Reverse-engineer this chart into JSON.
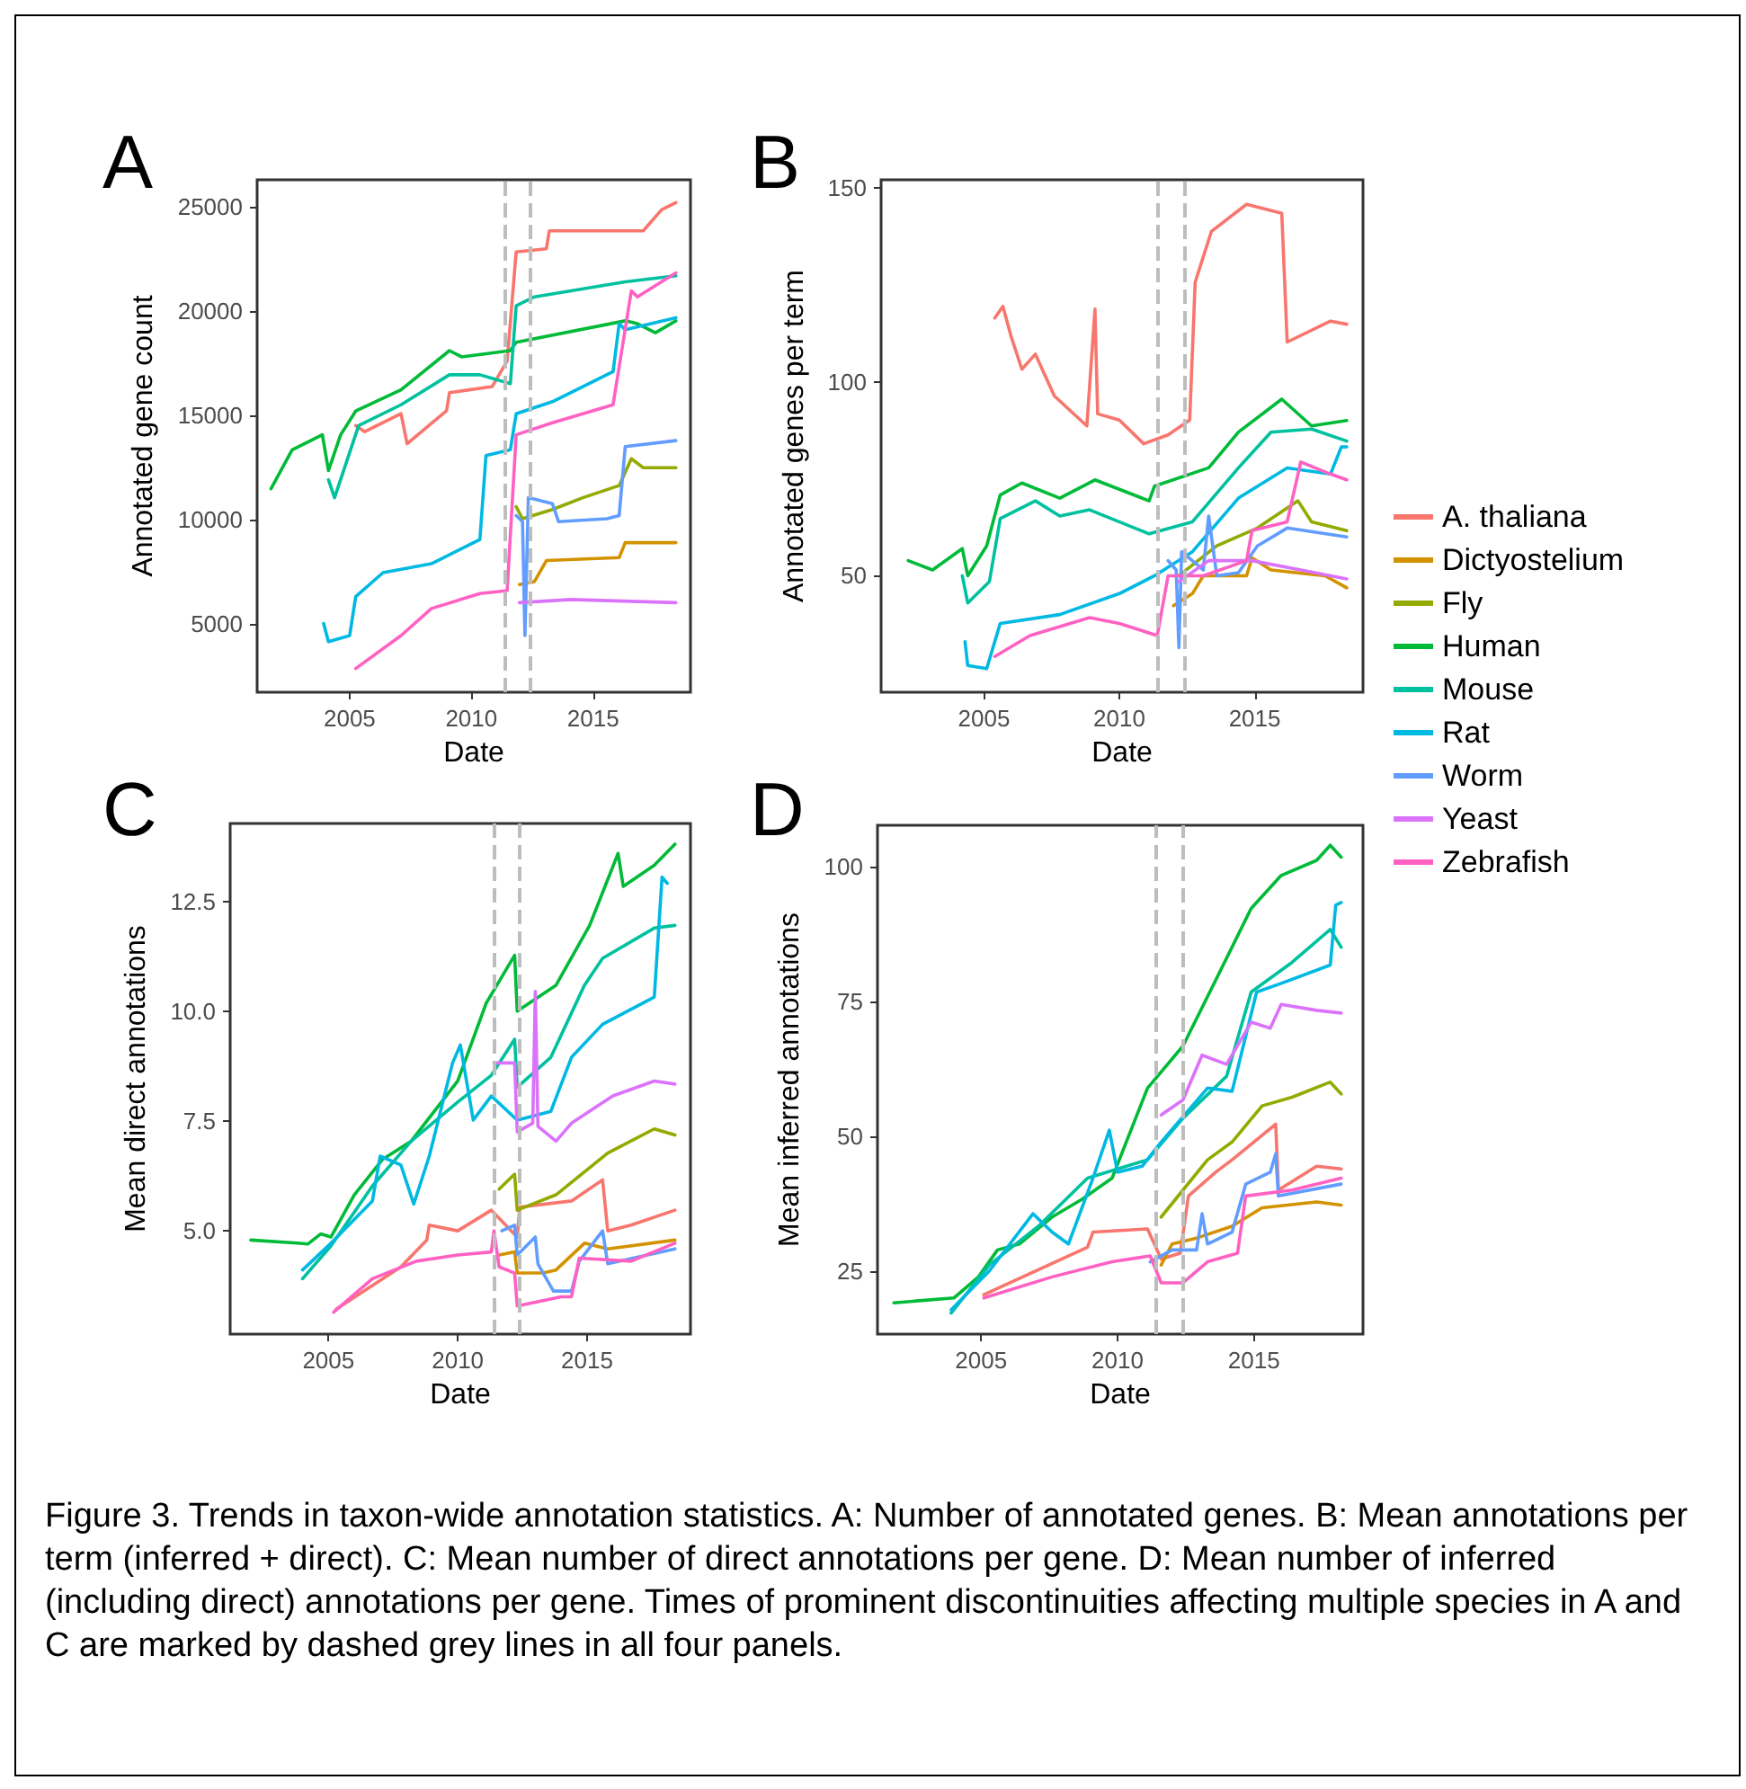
{
  "chart_data": [
    {
      "type": "line",
      "title": "A",
      "xlabel": "Date",
      "ylabel": "Annotated gene count",
      "xlim": [
        2001.2,
        2019
      ],
      "xticks": [
        2005,
        2010,
        2015
      ],
      "ylim": [
        1700,
        26300
      ],
      "yticks": [
        5000,
        10000,
        15000,
        20000,
        25000
      ],
      "grid": false,
      "ref_lines": [
        {
          "axis": "x",
          "value": 2011.4,
          "color": "#bdbdbd",
          "line_style": "dashed"
        },
        {
          "axis": "x",
          "value": 2012.4,
          "color": "#bdbdbd",
          "line_style": "dashed"
        }
      ],
      "series": [
        {
          "color": "#f8766d",
          "x": [
            2005.25,
            2005.62,
            2007.11,
            2007.36,
            2008.98,
            2009.1,
            2010.85,
            2011.47,
            2011.84,
            2013.08,
            2013.2,
            2017.06,
            2017.81,
            2018.4
          ],
          "values": [
            14500,
            14210,
            15070,
            13630,
            15210,
            16080,
            16370,
            17600,
            22840,
            22990,
            23850,
            23850,
            24860,
            25200
          ]
        },
        {
          "color": "#d39200",
          "x": [
            2011.97,
            2012.59,
            2013.08,
            2016.07,
            2016.32,
            2018.4
          ],
          "values": [
            6870,
            7010,
            8020,
            8160,
            8880,
            8880
          ]
        },
        {
          "color": "#93aa00",
          "x": [
            2011.84,
            2012.1,
            2013.33,
            2014.58,
            2016.07,
            2016.57,
            2017.06,
            2018.4
          ],
          "values": [
            10610,
            10030,
            10470,
            11040,
            11620,
            12910,
            12480,
            12480
          ]
        },
        {
          "color": "#00ba38",
          "x": [
            2001.77,
            2002.64,
            2003.88,
            2004.13,
            2004.63,
            2005.25,
            2007.11,
            2009.1,
            2009.6,
            2011.6,
            2011.84,
            2016.32,
            2016.82,
            2017.56,
            2018.4
          ],
          "values": [
            11470,
            13340,
            14060,
            12340,
            14060,
            15200,
            16220,
            18100,
            17800,
            18100,
            18500,
            19530,
            19390,
            18960,
            19530
          ]
        },
        {
          "color": "#00c19f",
          "x": [
            2004.13,
            2004.38,
            2005.37,
            2007.11,
            2009.1,
            2010.35,
            2011.6,
            2011.84,
            2012.59,
            2016.32,
            2018.4
          ],
          "values": [
            11900,
            11040,
            14500,
            15500,
            16940,
            16940,
            16510,
            20250,
            20680,
            21400,
            21690
          ]
        },
        {
          "color": "#00b9e3",
          "x": [
            2003.93,
            2004.13,
            2005,
            2005.25,
            2006.37,
            2008.36,
            2010.35,
            2010.6,
            2011.6,
            2011.84,
            2013.33,
            2015.82,
            2016.07,
            2016.32,
            2018.4
          ],
          "values": [
            5000,
            4130,
            4420,
            6290,
            7440,
            7870,
            9030,
            13060,
            13340,
            15070,
            15650,
            17090,
            19390,
            19100,
            19680
          ]
        },
        {
          "color": "#619cff",
          "x": [
            2011.84,
            2012.1,
            2012.2,
            2012.34,
            2013.33,
            2013.58,
            2015.57,
            2016.07,
            2016.32,
            2018.4
          ],
          "values": [
            10180,
            9890,
            4420,
            11040,
            10750,
            9890,
            10030,
            10180,
            13490,
            13780
          ]
        },
        {
          "color": "#db72fb",
          "x": [
            2011.97,
            2014.08,
            2018.4
          ],
          "values": [
            6000,
            6150,
            6000
          ]
        },
        {
          "color": "#ff61c3",
          "x": [
            2005.25,
            2007.11,
            2008.36,
            2010.35,
            2011.47,
            2011.84,
            2013.33,
            2015.82,
            2016.57,
            2016.82,
            2018.4
          ],
          "values": [
            2840,
            4420,
            5720,
            6440,
            6580,
            14060,
            14640,
            15500,
            20970,
            20680,
            21830
          ]
        }
      ]
    },
    {
      "type": "line",
      "title": "B",
      "xlabel": "Date",
      "ylabel": "Annotated genes per term",
      "xlim": [
        2001.2,
        2019
      ],
      "xticks": [
        2005,
        2010,
        2015
      ],
      "ylim": [
        20,
        152
      ],
      "yticks": [
        50,
        100,
        150
      ],
      "grid": false,
      "legend": "right",
      "ref_lines": [
        {
          "axis": "x",
          "value": 2011.4,
          "color": "#bdbdbd",
          "line_style": "dashed"
        },
        {
          "axis": "x",
          "value": 2012.4,
          "color": "#bdbdbd",
          "line_style": "dashed"
        }
      ],
      "series": [
        {
          "name": "A. thaliana",
          "color": "#f8766d",
          "x": [
            2005.4,
            2005.7,
            2006,
            2006.4,
            2006.9,
            2007.6,
            2008.8,
            2009.1,
            2009.2,
            2010,
            2010.9,
            2011.8,
            2012.6,
            2012.8,
            2013.4,
            2014.7,
            2016,
            2016.2,
            2017.8,
            2018.4
          ],
          "values": [
            116.4,
            119.4,
            111.7,
            103.2,
            107.1,
            96.3,
            88.6,
            118.7,
            91.7,
            90.1,
            84,
            86.3,
            90.1,
            125.6,
            138.7,
            145.7,
            143.4,
            110.2,
            115.6,
            114.8
          ]
        },
        {
          "name": "Dictyostelium",
          "color": "#d39200",
          "x": [
            2012,
            2012.7,
            2013.1,
            2014.7,
            2014.9,
            2015.6,
            2017.6,
            2018.4
          ],
          "values": [
            42.3,
            45.4,
            50,
            50,
            54.6,
            51.5,
            50,
            46.9
          ]
        },
        {
          "name": "Fly",
          "color": "#93aa00",
          "x": [
            2012.2,
            2013.6,
            2015.1,
            2016.6,
            2017.1,
            2018.4
          ],
          "values": [
            50,
            57.7,
            62.3,
            69.3,
            63.9,
            61.6
          ]
        },
        {
          "name": "Human",
          "color": "#00ba38",
          "x": [
            2002.2,
            2003.1,
            2004.2,
            2004.4,
            2005.1,
            2005.6,
            2006.4,
            2007.8,
            2009.1,
            2011.1,
            2011.3,
            2013.3,
            2014.4,
            2016,
            2017.1,
            2018.4
          ],
          "values": [
            53.9,
            51.5,
            57,
            50,
            57.7,
            70.8,
            73.9,
            70,
            74.7,
            69.3,
            73.1,
            77.8,
            87,
            95.5,
            88.6,
            90
          ]
        },
        {
          "name": "Mouse",
          "color": "#00c19f",
          "x": [
            2004.2,
            2004.4,
            2005.2,
            2005.6,
            2006.9,
            2007.8,
            2008.9,
            2011.1,
            2012.7,
            2014.4,
            2015.6,
            2017.1,
            2018.4
          ],
          "values": [
            50,
            43,
            48.5,
            64.7,
            69.3,
            65.4,
            67,
            60.8,
            63.9,
            77.8,
            87,
            87.8,
            84.7
          ]
        },
        {
          "name": "Rat",
          "color": "#00b9e3",
          "x": [
            2004.3,
            2004.4,
            2005.1,
            2005.6,
            2007.8,
            2010,
            2011.3,
            2012.7,
            2014.4,
            2016.2,
            2017.8,
            2018.2,
            2018.4
          ],
          "values": [
            33,
            26.9,
            26.1,
            37.7,
            40,
            45.4,
            50,
            56.2,
            70,
            77.8,
            76.2,
            83.2,
            83.2
          ]
        },
        {
          "name": "Worm",
          "color": "#619cff",
          "x": [
            2011.8,
            2012.1,
            2012.2,
            2012.3,
            2013.1,
            2013.3,
            2013.6,
            2014.4,
            2015.1,
            2016.2,
            2018.4
          ],
          "values": [
            53.9,
            51.5,
            31.5,
            56.2,
            51.5,
            65.4,
            50,
            50.8,
            57.7,
            62.3,
            60
          ]
        },
        {
          "name": "Yeast",
          "color": "#db72fb",
          "x": [
            2012.2,
            2013.3,
            2014.9,
            2016.7,
            2018.4
          ],
          "values": [
            48.5,
            53.9,
            53.9,
            51.5,
            49.2
          ]
        },
        {
          "name": "Zebrafish",
          "color": "#ff61c3",
          "x": [
            2005.4,
            2006.7,
            2008.9,
            2010,
            2011.4,
            2011.8,
            2013.1,
            2014.7,
            2014.9,
            2016.2,
            2016.7,
            2017.8,
            2018.4
          ],
          "values": [
            29.2,
            34.6,
            39.2,
            37.7,
            34.6,
            50,
            50,
            53.9,
            61.6,
            63.9,
            79.3,
            76.2,
            74.7
          ]
        }
      ]
    },
    {
      "type": "line",
      "title": "C",
      "xlabel": "Date",
      "ylabel": "Mean direct annotations",
      "xlim": [
        2001.2,
        2019
      ],
      "xticks": [
        2005,
        2010,
        2015
      ],
      "ylim": [
        2.65,
        14.27
      ],
      "yticks": [
        {
          "value": 5,
          "label": "5.0"
        },
        7.5,
        {
          "value": 10,
          "label": "10.0"
        },
        12.5
      ],
      "grid": false,
      "ref_lines": [
        {
          "axis": "x",
          "value": 2011.4,
          "color": "#bdbdbd",
          "line_style": "dashed"
        },
        {
          "axis": "x",
          "value": 2012.4,
          "color": "#bdbdbd",
          "line_style": "dashed"
        }
      ],
      "series": [
        {
          "color": "#f8766d",
          "x": [
            2005.3,
            2007.8,
            2008.8,
            2008.9,
            2010,
            2011.3,
            2012.3,
            2012.4,
            2014.4,
            2015.6,
            2015.8,
            2016.7,
            2018.4
          ],
          "values": [
            3.22,
            4.18,
            4.79,
            5.13,
            5,
            5.47,
            4.86,
            5.54,
            5.68,
            6.16,
            5,
            5.13,
            5.47
          ]
        },
        {
          "color": "#d39200",
          "x": [
            2011.6,
            2012.2,
            2012.3,
            2013.3,
            2013.8,
            2014.9,
            2015.8,
            2018.4
          ],
          "values": [
            4.45,
            4.52,
            4.04,
            4.04,
            4.11,
            4.72,
            4.59,
            4.79
          ]
        },
        {
          "color": "#93aa00",
          "x": [
            2011.6,
            2012.2,
            2012.3,
            2013.8,
            2015.8,
            2017.6,
            2018.4
          ],
          "values": [
            5.95,
            6.29,
            5.47,
            5.82,
            6.77,
            7.32,
            7.18
          ]
        },
        {
          "color": "#00ba38",
          "x": [
            2002,
            2003.8,
            2004.2,
            2004.7,
            2005.1,
            2006,
            2007.1,
            2008.2,
            2010,
            2011.1,
            2012.2,
            2012.3,
            2013.8,
            2015.1,
            2016.2,
            2016.4,
            2017.6,
            2018.4
          ],
          "values": [
            4.79,
            4.72,
            4.7,
            4.93,
            4.86,
            5.82,
            6.63,
            7.04,
            8.41,
            10.18,
            11.27,
            10,
            10.59,
            11.95,
            13.59,
            12.84,
            13.32,
            13.8
          ]
        },
        {
          "color": "#00c19f",
          "x": [
            2004,
            2005.1,
            2006.7,
            2008.2,
            2010,
            2011.3,
            2012.2,
            2012.3,
            2013.6,
            2014.9,
            2015.6,
            2017.6,
            2018.4
          ],
          "values": [
            3.91,
            4.66,
            6.02,
            7.04,
            7.93,
            8.54,
            9.36,
            8.27,
            8.95,
            10.59,
            11.2,
            11.89,
            11.95
          ]
        },
        {
          "color": "#00b9e3",
          "x": [
            2004,
            2005.1,
            2006.7,
            2007,
            2007.8,
            2008.3,
            2008.9,
            2009.8,
            2010.1,
            2010.6,
            2011.3,
            2012.3,
            2013.6,
            2014.4,
            2015.6,
            2017.6,
            2017.9,
            2018.1
          ],
          "values": [
            4.11,
            4.72,
            5.68,
            6.7,
            6.5,
            5.61,
            6.7,
            8.82,
            9.23,
            7.52,
            8.07,
            7.52,
            7.72,
            8.95,
            9.7,
            10.32,
            13.05,
            12.91
          ]
        },
        {
          "color": "#619cff",
          "x": [
            2011.7,
            2012.2,
            2012.3,
            2013,
            2013.1,
            2013.7,
            2014.4,
            2014.7,
            2015.6,
            2015.8,
            2018.4
          ],
          "values": [
            5,
            5.13,
            4.45,
            4.86,
            4.25,
            3.63,
            3.63,
            4.31,
            5,
            4.25,
            4.59
          ]
        },
        {
          "color": "#db72fb",
          "x": [
            2011.4,
            2012.2,
            2012.3,
            2012.9,
            2013,
            2013.1,
            2013.8,
            2014.4,
            2016,
            2017.6,
            2018.4
          ],
          "values": [
            8.82,
            8.82,
            7.25,
            7.45,
            10.45,
            7.38,
            7.04,
            7.45,
            8.07,
            8.41,
            8.34
          ]
        },
        {
          "color": "#ff61c3",
          "x": [
            2005.2,
            2006.7,
            2008.4,
            2010,
            2011.3,
            2011.4,
            2011.6,
            2012.2,
            2012.3,
            2014,
            2014.4,
            2014.7,
            2016.7,
            2018.4
          ],
          "values": [
            3.15,
            3.91,
            4.31,
            4.45,
            4.52,
            5,
            4.18,
            4.04,
            3.29,
            3.5,
            3.5,
            4.38,
            4.31,
            4.72
          ]
        }
      ]
    },
    {
      "type": "line",
      "title": "D",
      "xlabel": "Date",
      "ylabel": "Mean inferred annotations",
      "xlim": [
        2001.2,
        2019
      ],
      "xticks": [
        2005,
        2010,
        2015
      ],
      "ylim": [
        13.3,
        107.6
      ],
      "yticks": [
        25,
        50,
        75,
        100
      ],
      "grid": false,
      "ref_lines": [
        {
          "axis": "x",
          "value": 2011.4,
          "color": "#bdbdbd",
          "line_style": "dashed"
        },
        {
          "axis": "x",
          "value": 2012.4,
          "color": "#bdbdbd",
          "line_style": "dashed"
        }
      ],
      "annotations": [
        "Figure 3. Trends in taxon-wide annotation statistics. A: Number of annotated genes. B: Mean annotations per term (inferred + direct). C: Mean number of direct annotations per gene. D: Mean number of inferred (including direct) annotations per gene. Times of prominent discontinuities affecting multiple species in A and C are marked by dashed grey lines in all four panels."
      ],
      "series": [
        {
          "color": "#f8766d",
          "x": [
            2005.1,
            2008.9,
            2009.1,
            2011.1,
            2011.6,
            2012.3,
            2012.6,
            2013.6,
            2014.2,
            2015.8,
            2015.9,
            2017.3,
            2018.2
          ],
          "values": [
            20.6,
            29.4,
            32.2,
            32.8,
            27.2,
            28.3,
            38.9,
            43.3,
            45.6,
            52.2,
            40,
            44.4,
            43.9
          ]
        },
        {
          "color": "#d39200",
          "x": [
            2011.6,
            2012,
            2012.9,
            2014.2,
            2015.3,
            2017.3,
            2018.2
          ],
          "values": [
            26.1,
            30,
            31.1,
            33.3,
            36.7,
            37.8,
            37.2
          ]
        },
        {
          "color": "#93aa00",
          "x": [
            2011.6,
            2012.4,
            2013.3,
            2014.2,
            2015.3,
            2016.4,
            2017.8,
            2018.2
          ],
          "values": [
            35,
            40,
            45.6,
            48.9,
            55.6,
            57.2,
            60,
            57.8
          ]
        },
        {
          "color": "#00ba38",
          "x": [
            2001.8,
            2004,
            2004.9,
            2005.6,
            2006.4,
            2007.6,
            2008.7,
            2009.8,
            2011.1,
            2012.4,
            2013.6,
            2014.9,
            2016,
            2017.3,
            2017.8,
            2018.2
          ],
          "values": [
            19.1,
            20,
            23.9,
            28.9,
            30,
            35,
            38.3,
            42.2,
            58.9,
            66.7,
            78.9,
            92.2,
            98.3,
            101.1,
            103.9,
            101.7
          ]
        },
        {
          "color": "#00c19f",
          "x": [
            2003.9,
            2005.3,
            2007.1,
            2008.9,
            2011.1,
            2012.4,
            2014,
            2014.9,
            2016.4,
            2017.8,
            2018.2
          ],
          "values": [
            17.2,
            26.1,
            33.3,
            42.2,
            45.6,
            53.3,
            61.1,
            76.7,
            82.2,
            88.3,
            85
          ]
        },
        {
          "color": "#00b9e3",
          "x": [
            2003.9,
            2005.3,
            2006.9,
            2007.6,
            2008.2,
            2009.1,
            2009.7,
            2010,
            2010.9,
            2011.6,
            2013.3,
            2014.2,
            2015.1,
            2016,
            2017.8,
            2018,
            2018.2
          ],
          "values": [
            17.8,
            25,
            35.6,
            32.2,
            30,
            42.2,
            51.1,
            43.3,
            44.4,
            48.9,
            58.9,
            58.3,
            76.7,
            78.3,
            81.7,
            92.8,
            93.3
          ]
        },
        {
          "color": "#619cff",
          "x": [
            2011.2,
            2012,
            2012.9,
            2013.1,
            2013.3,
            2014.2,
            2014.7,
            2015.6,
            2015.8,
            2015.9,
            2018.2
          ],
          "values": [
            26.7,
            28.9,
            28.9,
            35.6,
            30,
            32.2,
            41.1,
            43.3,
            46.7,
            38.9,
            41.1
          ]
        },
        {
          "color": "#db72fb",
          "x": [
            2011.6,
            2012.4,
            2013.1,
            2014,
            2014.9,
            2015.6,
            2016,
            2017.3,
            2018.2
          ],
          "values": [
            53.9,
            56.7,
            65,
            63.3,
            71.1,
            70,
            74.4,
            73.3,
            72.8
          ]
        },
        {
          "color": "#ff61c3",
          "x": [
            2005.1,
            2007.6,
            2009.8,
            2011.2,
            2011.6,
            2012.4,
            2013.3,
            2014.4,
            2014.7,
            2016.4,
            2018.2
          ],
          "values": [
            20,
            23.9,
            26.7,
            27.8,
            22.8,
            22.8,
            26.7,
            28.3,
            38.9,
            40,
            42.2
          ]
        }
      ]
    }
  ]
}
